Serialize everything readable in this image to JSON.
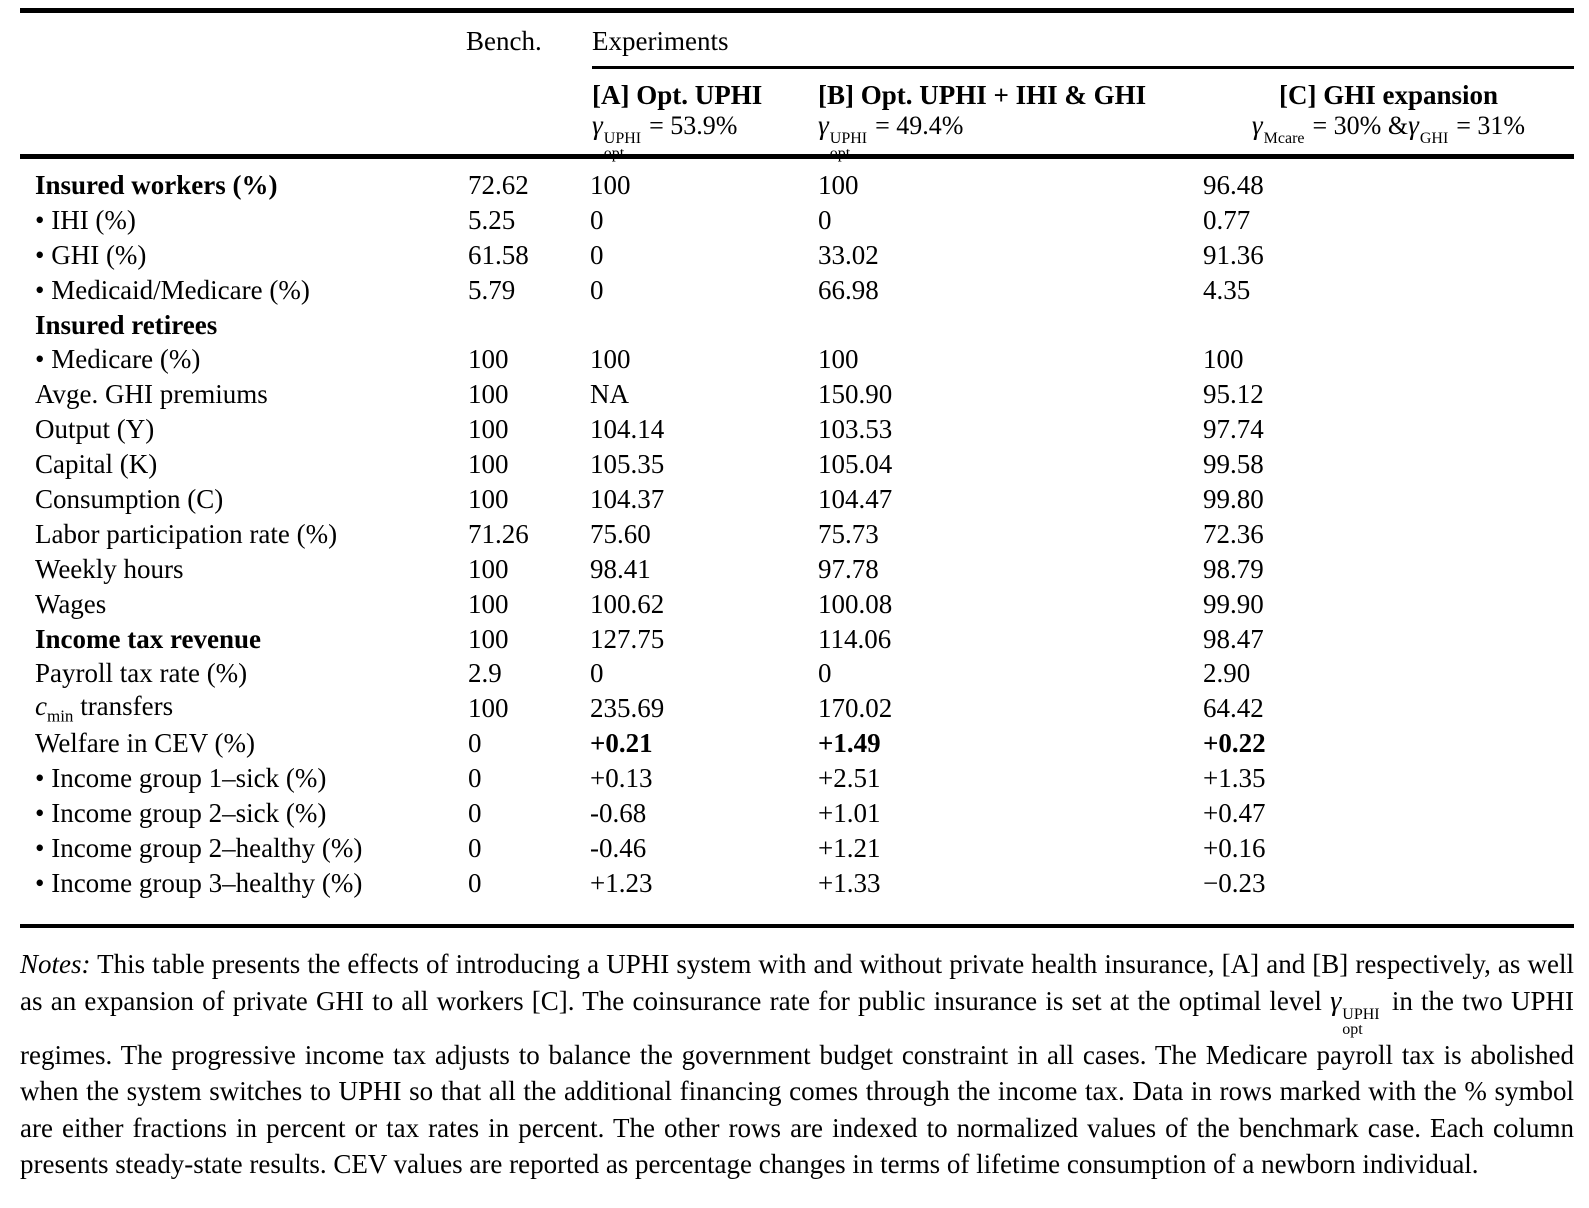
{
  "table": {
    "header": {
      "bench_label": "Bench.",
      "experiments_label": "Experiments",
      "col_a": {
        "title": "[A] Opt. UPHI",
        "gamma": "γ",
        "sup": "UPHI",
        "sub": "opt",
        "eq": "= 53.9%"
      },
      "col_b": {
        "title": "[B] Opt. UPHI + IHI & GHI",
        "gamma": "γ",
        "sup": "UPHI",
        "sub": "opt",
        "eq": "= 49.4%"
      },
      "col_c": {
        "title": "[C] GHI expansion",
        "g1": "γ",
        "sup1": "Mcare",
        "eq1": "= 30% &",
        "g2": "γ",
        "sup2": "GHI",
        "eq2": "= 31%"
      }
    },
    "rows": [
      {
        "label": "Insured workers (%)",
        "label_bold": true,
        "bench": "72.62",
        "a": "100",
        "b": "100",
        "c": "96.48"
      },
      {
        "label": "• IHI (%)",
        "bench": "5.25",
        "a": "0",
        "b": "0",
        "c": "0.77"
      },
      {
        "label": "• GHI (%)",
        "bench": "61.58",
        "a": "0",
        "b": "33.02",
        "c": "91.36"
      },
      {
        "label": "• Medicaid/Medicare (%)",
        "bench": "5.79",
        "a": "0",
        "b": "66.98",
        "c": "4.35"
      },
      {
        "label": "Insured retirees",
        "label_bold": true,
        "bench": "",
        "a": "",
        "b": "",
        "c": ""
      },
      {
        "label": "• Medicare (%)",
        "bench": "100",
        "a": "100",
        "b": "100",
        "c": "100"
      },
      {
        "label": "Avge. GHI premiums",
        "bench": "100",
        "a": "NA",
        "b": "150.90",
        "c": "95.12"
      },
      {
        "label": "Output (Y)",
        "bench": "100",
        "a": "104.14",
        "b": "103.53",
        "c": "97.74"
      },
      {
        "label": "Capital (K)",
        "bench": "100",
        "a": "105.35",
        "b": "105.04",
        "c": "99.58"
      },
      {
        "label": "Consumption (C)",
        "bench": "100",
        "a": "104.37",
        "b": "104.47",
        "c": "99.80"
      },
      {
        "label": "Labor participation rate (%)",
        "bench": "71.26",
        "a": "75.60",
        "b": "75.73",
        "c": "72.36"
      },
      {
        "label": "Weekly hours",
        "bench": "100",
        "a": "98.41",
        "b": "97.78",
        "c": "98.79"
      },
      {
        "label": "Wages",
        "bench": "100",
        "a": "100.62",
        "b": "100.08",
        "c": "99.90"
      },
      {
        "label": "Income tax revenue",
        "label_bold": true,
        "bench": "100",
        "a": "127.75",
        "b": "114.06",
        "c": "98.47"
      },
      {
        "label": "Payroll tax rate (%)",
        "bench": "2.9",
        "a": "0",
        "b": "0",
        "c": "2.90"
      },
      {
        "label_math": {
          "italic": "c",
          "sub": "min",
          "rest": " transfers"
        },
        "bench": "100",
        "a": "235.69",
        "b": "170.02",
        "c": "64.42"
      },
      {
        "label": "Welfare in CEV (%)",
        "values_bold": true,
        "bench": "0",
        "a": "+0.21",
        "b": "+1.49",
        "c": "+0.22"
      },
      {
        "label": "• Income group 1–sick (%)",
        "bench": "0",
        "a": "+0.13",
        "b": "+2.51",
        "c": "+1.35"
      },
      {
        "label": "• Income group 2–sick (%)",
        "bench": "0",
        "a": "-0.68",
        "b": "+1.01",
        "c": "+0.47"
      },
      {
        "label": "• Income group 2–healthy (%)",
        "bench": "0",
        "a": "-0.46",
        "b": "+1.21",
        "c": "+0.16"
      },
      {
        "label": "• Income group 3–healthy (%)",
        "bench": "0",
        "a": "+1.23",
        "b": "+1.33",
        "c": "−0.23"
      }
    ]
  },
  "notes": {
    "label": "Notes:",
    "part1": " This table presents the effects of introducing a UPHI system with and without private health insurance, [A] and [B] respectively, as well as an expansion of private GHI to all workers [C]. The coinsurance rate for public insurance is set at the optimal level ",
    "gamma": "γ",
    "gamma_sup": "UPHI",
    "gamma_sub": "opt",
    "part2": " in the two UPHI regimes. The progressive income tax adjusts to balance the government budget constraint in all cases. The Medicare payroll tax is abolished when the system switches to UPHI so that all the additional financing comes through the income tax. Data in rows marked with the % symbol are either fractions in percent or tax rates in percent. The other rows are indexed to normalized values of the benchmark case. Each column presents steady-state results. CEV values are reported as percentage changes in terms of lifetime consumption of a newborn individual."
  }
}
